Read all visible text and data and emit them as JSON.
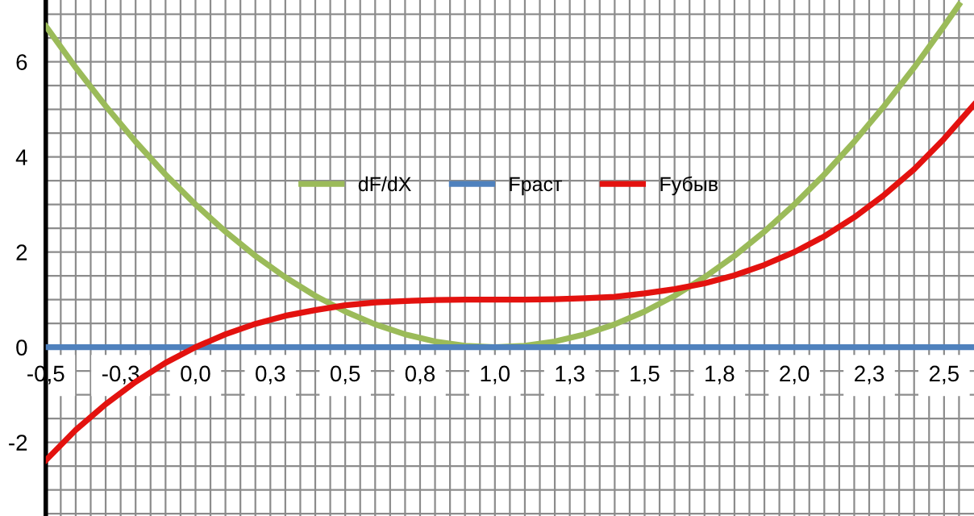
{
  "chart_data": {
    "type": "line",
    "xlim": [
      -0.5,
      2.6
    ],
    "ylim": [
      -3.55,
      7.3
    ],
    "xticks": [
      {
        "value": -0.5,
        "label": "-0,5"
      },
      {
        "value": -0.25,
        "label": "-0,3"
      },
      {
        "value": 0,
        "label": "0,0"
      },
      {
        "value": 0.25,
        "label": "0,3"
      },
      {
        "value": 0.5,
        "label": "0,5"
      },
      {
        "value": 0.75,
        "label": "0,8"
      },
      {
        "value": 1,
        "label": "1,0"
      },
      {
        "value": 1.25,
        "label": "1,3"
      },
      {
        "value": 1.5,
        "label": "1,5"
      },
      {
        "value": 1.75,
        "label": "1,8"
      },
      {
        "value": 2,
        "label": "2,0"
      },
      {
        "value": 2.25,
        "label": "2,3"
      },
      {
        "value": 2.5,
        "label": "2,5"
      }
    ],
    "yticks": [
      -2,
      0,
      2,
      4,
      6
    ],
    "grid": true,
    "legend": "center",
    "line_style": "solid",
    "marker": "none",
    "series": [
      {
        "name": "dF/dX",
        "color": "#9bbb59",
        "x": [
          -0.5,
          -0.4,
          -0.3,
          -0.2,
          -0.1,
          0,
          0.1,
          0.2,
          0.3,
          0.4,
          0.5,
          0.6,
          0.7,
          0.8,
          0.9,
          1.0,
          1.1,
          1.2,
          1.3,
          1.4,
          1.5,
          1.6,
          1.7,
          1.8,
          1.9,
          2.0,
          2.1,
          2.2,
          2.3,
          2.4,
          2.5,
          2.55
        ],
        "values": [
          6.75,
          5.88,
          5.07,
          4.32,
          3.63,
          3.0,
          2.43,
          1.92,
          1.47,
          1.08,
          0.75,
          0.48,
          0.27,
          0.12,
          0.03,
          0,
          0.03,
          0.12,
          0.27,
          0.48,
          0.75,
          1.08,
          1.47,
          1.92,
          2.43,
          3.0,
          3.63,
          4.32,
          5.07,
          5.88,
          6.75,
          7.2
        ]
      },
      {
        "name": "Fраст",
        "color": "#4f81bd",
        "x": [
          -0.5,
          2.6
        ],
        "values": [
          0,
          0
        ]
      },
      {
        "name": "Fубыв",
        "color": "#e3120f",
        "x": [
          -0.5,
          -0.4,
          -0.3,
          -0.2,
          -0.1,
          0,
          0.1,
          0.2,
          0.3,
          0.4,
          0.5,
          0.6,
          0.7,
          0.8,
          0.9,
          1.0,
          1.1,
          1.2,
          1.3,
          1.4,
          1.5,
          1.6,
          1.7,
          1.8,
          1.9,
          2.0,
          2.1,
          2.2,
          2.3,
          2.4,
          2.5,
          2.6
        ],
        "values": [
          -2.38,
          -1.74,
          -1.2,
          -0.73,
          -0.33,
          0,
          0.27,
          0.49,
          0.66,
          0.78,
          0.88,
          0.94,
          0.97,
          0.99,
          1.0,
          1.0,
          1.0,
          1.01,
          1.03,
          1.06,
          1.13,
          1.22,
          1.34,
          1.51,
          1.73,
          2.0,
          2.33,
          2.73,
          3.2,
          3.74,
          4.38,
          5.1
        ]
      }
    ]
  }
}
